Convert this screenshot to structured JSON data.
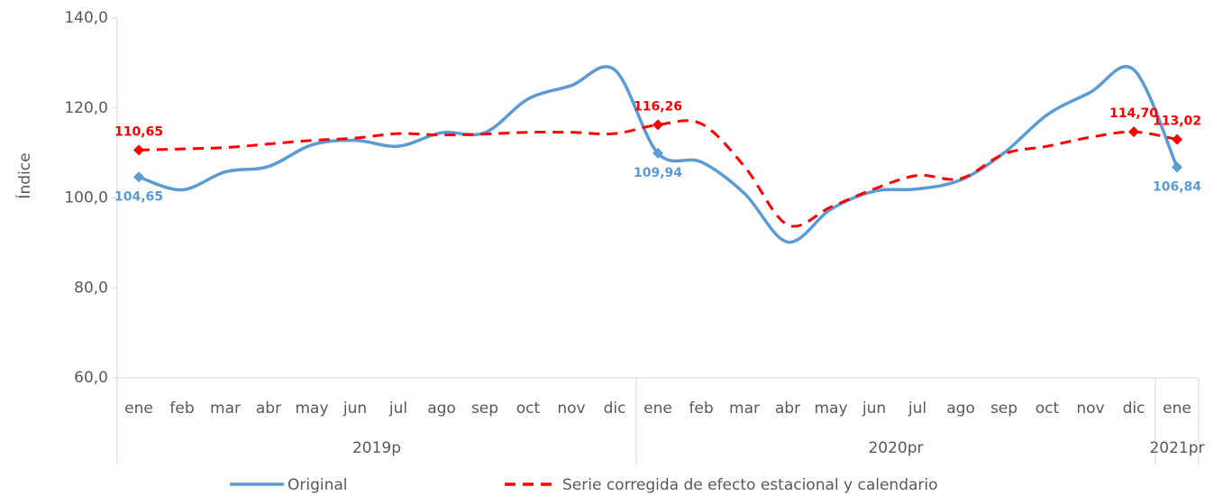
{
  "chart_data": {
    "type": "line",
    "ylabel": "Índice",
    "categories": [
      "ene",
      "feb",
      "mar",
      "abr",
      "may",
      "jun",
      "jul",
      "ago",
      "sep",
      "oct",
      "nov",
      "dic",
      "ene",
      "feb",
      "mar",
      "abr",
      "may",
      "jun",
      "jul",
      "ago",
      "sep",
      "oct",
      "nov",
      "dic",
      "ene"
    ],
    "groups": [
      {
        "label": "2019p",
        "count": 12
      },
      {
        "label": "2020pr",
        "count": 12
      },
      {
        "label": "2021pr",
        "count": 1
      }
    ],
    "series": [
      {
        "name": "Original",
        "color": "#5b9bd5",
        "dash": false,
        "values": [
          104.65,
          101.8,
          105.8,
          107,
          111.8,
          112.8,
          111.5,
          114.5,
          114.5,
          122,
          125,
          128.5,
          109.94,
          108,
          101,
          90.2,
          97.5,
          101.5,
          102,
          104,
          110,
          118.5,
          123.5,
          128.5,
          106.84
        ],
        "value_labels": [
          "104,65",
          null,
          null,
          null,
          null,
          null,
          null,
          null,
          null,
          null,
          null,
          null,
          "109,94",
          null,
          null,
          null,
          null,
          null,
          null,
          null,
          null,
          null,
          null,
          null,
          "106,84"
        ]
      },
      {
        "name": "Serie corregida de efecto estacional y calendario",
        "color": "#ff0000",
        "dash": true,
        "values": [
          110.65,
          110.9,
          111.2,
          112,
          112.8,
          113.3,
          114.3,
          114,
          114.2,
          114.6,
          114.6,
          114.3,
          116.26,
          116.5,
          107,
          94,
          98,
          102,
          105,
          104.3,
          109.8,
          111.5,
          113.5,
          114.7,
          113.02
        ],
        "value_labels": [
          "110,65",
          null,
          null,
          null,
          null,
          null,
          null,
          null,
          null,
          null,
          null,
          null,
          "116,26",
          null,
          null,
          null,
          null,
          null,
          null,
          null,
          null,
          null,
          null,
          "114,70",
          "113,02"
        ]
      }
    ],
    "ylim": [
      60,
      140
    ],
    "yticks": [
      {
        "value": 60,
        "label": "60,0"
      },
      {
        "value": 80,
        "label": "80,0"
      },
      {
        "value": 100,
        "label": "100,0"
      },
      {
        "value": 120,
        "label": "120,0"
      },
      {
        "value": 140,
        "label": "140,0"
      }
    ]
  }
}
